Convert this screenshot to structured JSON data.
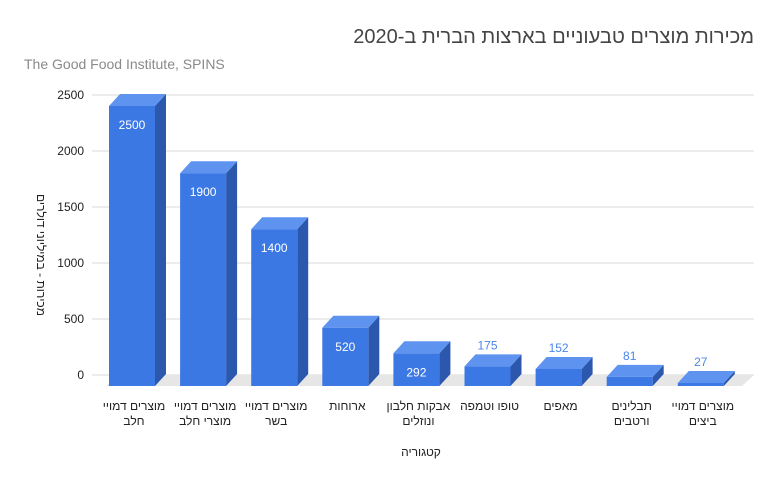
{
  "chart_data": {
    "type": "bar",
    "title": "מכירות מוצרים טבעוניים בארצות הברית ב-2020",
    "subtitle": "The Good Food Institute, SPINS",
    "xlabel": "קטגוריה",
    "ylabel": "מכירות - במיליוני דולרים",
    "ylim": [
      0,
      2500
    ],
    "yticks": [
      0,
      500,
      1000,
      1500,
      2000,
      2500
    ],
    "grid": true,
    "style": "3d",
    "colors": {
      "bar_front": "#3c78e4",
      "bar_side": "#2b58ad",
      "bar_top": "#5e93f0",
      "floor": "#e6e6e6",
      "label_outside": "#4a86e8"
    },
    "categories": [
      [
        "מוצרים דמויי",
        "חלב"
      ],
      [
        "מוצרים דמויי",
        "מוצרי חלב"
      ],
      [
        "מוצרים דמויי",
        "בשר"
      ],
      [
        "ארוחות"
      ],
      [
        "אבקות חלבון",
        "ונוזלים"
      ],
      [
        "טופו וטמפה"
      ],
      [
        "מאפים"
      ],
      [
        "תבלינים",
        "ורטבים"
      ],
      [
        "מוצרים דמויי",
        "ביצים"
      ]
    ],
    "values": [
      2500,
      1900,
      1400,
      520,
      292,
      175,
      152,
      81,
      27
    ]
  }
}
